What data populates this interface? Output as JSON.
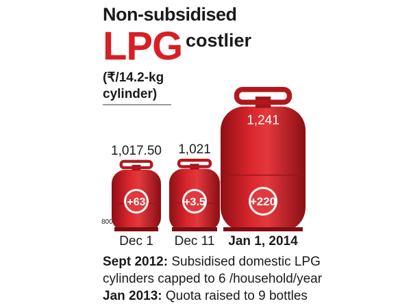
{
  "headline": {
    "line1": "Non-subsidised",
    "lpg": "LPG",
    "costlier": "costlier",
    "unit_line1": "(₹/14.2-kg",
    "unit_line2": "cylinder)"
  },
  "chart_data": {
    "type": "bar",
    "title": "Non-subsidised LPG costlier",
    "ylabel": "(₹/14.2-kg cylinder)",
    "categories": [
      "Dec 1",
      "Dec 11",
      "Jan 1, 2014"
    ],
    "values": [
      1017.5,
      1021,
      1241
    ],
    "value_labels": [
      "1,017.50",
      "1,021",
      "1,241"
    ],
    "increase_labels": [
      "+63",
      "+3.5",
      "+220"
    ],
    "increases": [
      63,
      3.5,
      220
    ],
    "baseline_label": "800",
    "ylim": [
      800,
      1300
    ],
    "colors": {
      "cylinder": "#c8202a",
      "badge": "#e03a3f",
      "badge_ring": "#ffffff"
    }
  },
  "footnotes": [
    {
      "key": "Sept 2012:",
      "text": " Subsidised domestic LPG"
    },
    {
      "key": "",
      "text": "cylinders capped to 6 /household/year"
    },
    {
      "key": "Jan 2013:",
      "text": " Quota raised to 9 bottles"
    }
  ]
}
